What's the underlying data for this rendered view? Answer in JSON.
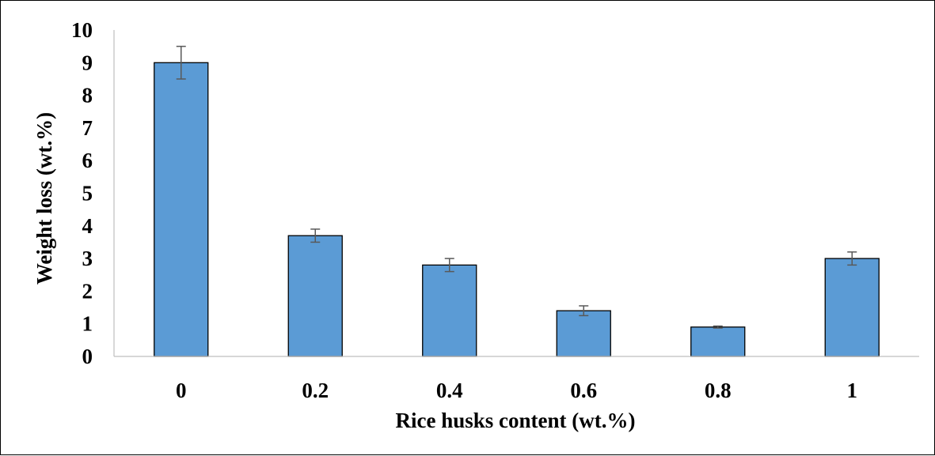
{
  "chart_data": {
    "type": "bar",
    "title": "",
    "xlabel": "Rice husks content (wt.%)",
    "ylabel": "Weight loss (wt.%)",
    "categories": [
      "0",
      "0.2",
      "0.4",
      "0.6",
      "0.8",
      "1"
    ],
    "values": [
      9.0,
      3.7,
      2.8,
      1.4,
      0.9,
      3.0
    ],
    "error": [
      0.5,
      0.2,
      0.2,
      0.15,
      0.03,
      0.2
    ],
    "ylim": [
      0,
      10
    ],
    "yticks": [
      "0",
      "1",
      "2",
      "3",
      "4",
      "5",
      "6",
      "7",
      "8",
      "9",
      "10"
    ],
    "grid": false,
    "legend": "none",
    "colors": {
      "bar_fill": "#5B9BD5",
      "bar_stroke": "#000000",
      "error_bar": "#595959",
      "axis": "#bfbfbf"
    }
  }
}
